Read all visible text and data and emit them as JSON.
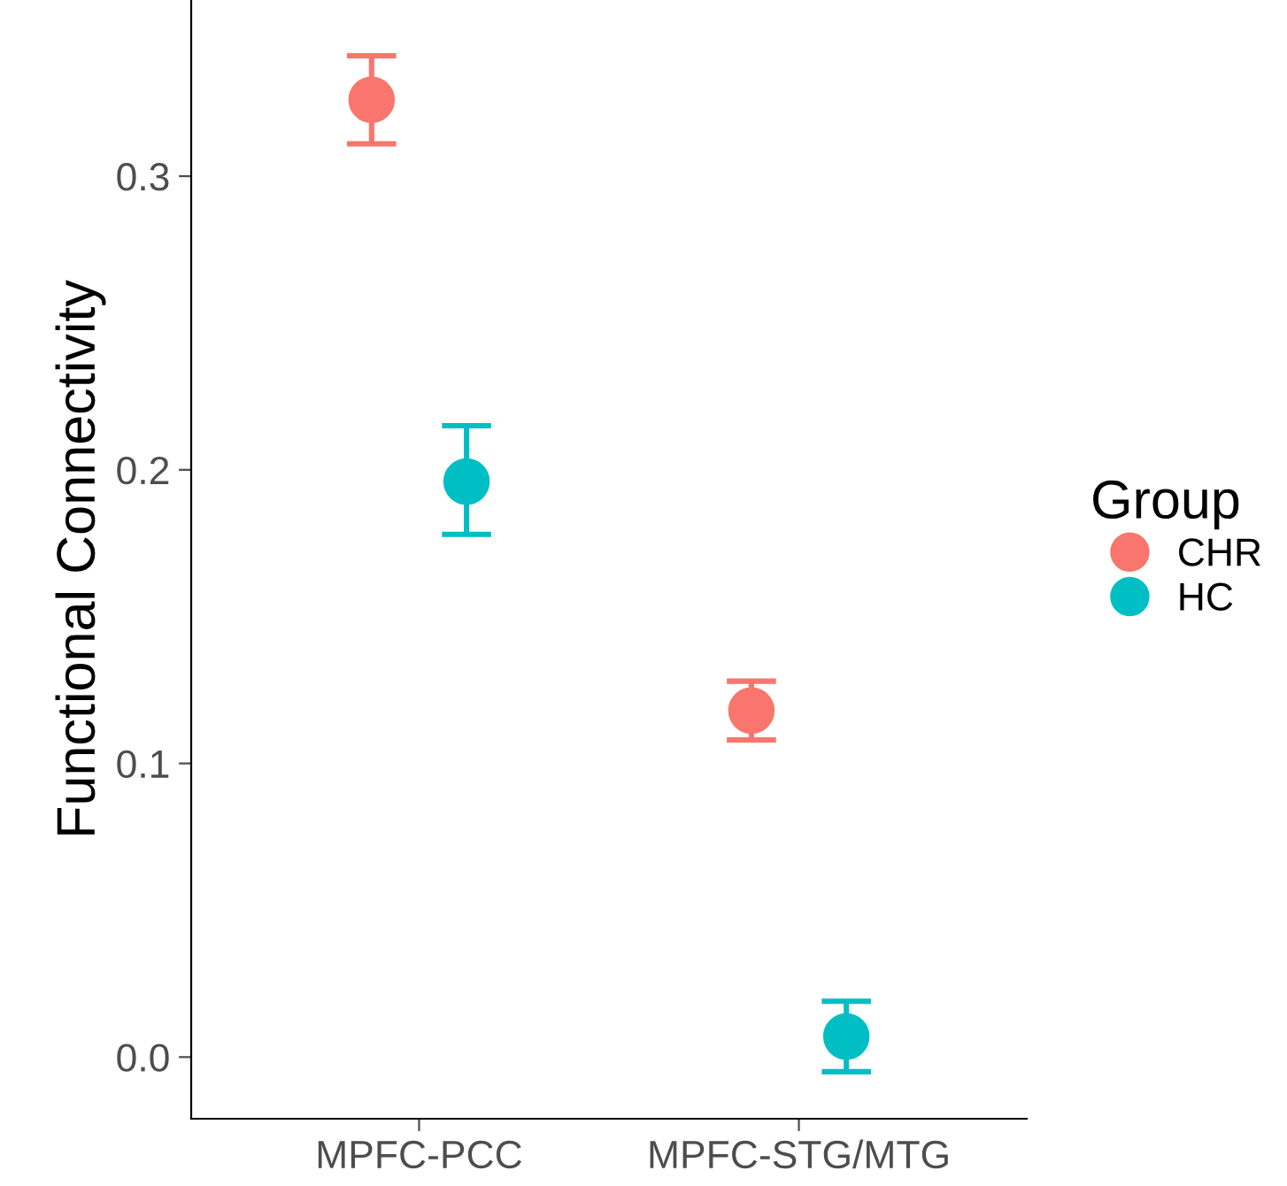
{
  "chart_data": {
    "type": "scatter",
    "ylabel": "Functional Connectivity",
    "legend_title": "Group",
    "categories": [
      "MPFC-PCC",
      "MPFC-STG/MTG"
    ],
    "series": [
      {
        "name": "CHR",
        "color": "#f8766d",
        "values": [
          0.326,
          0.118
        ],
        "errors": [
          [
            0.311,
            0.341
          ],
          [
            0.108,
            0.128
          ]
        ]
      },
      {
        "name": "HC",
        "color": "#00bfc4",
        "values": [
          0.196,
          0.007
        ],
        "errors": [
          [
            0.178,
            0.215
          ],
          [
            -0.005,
            0.019
          ]
        ]
      }
    ],
    "ylim": [
      -0.021,
      0.36
    ],
    "yticks": [
      {
        "value": 0,
        "label": "0.0"
      },
      0.1,
      0.2,
      0.3
    ],
    "marker": "circle",
    "grid": false,
    "legend": "right"
  }
}
